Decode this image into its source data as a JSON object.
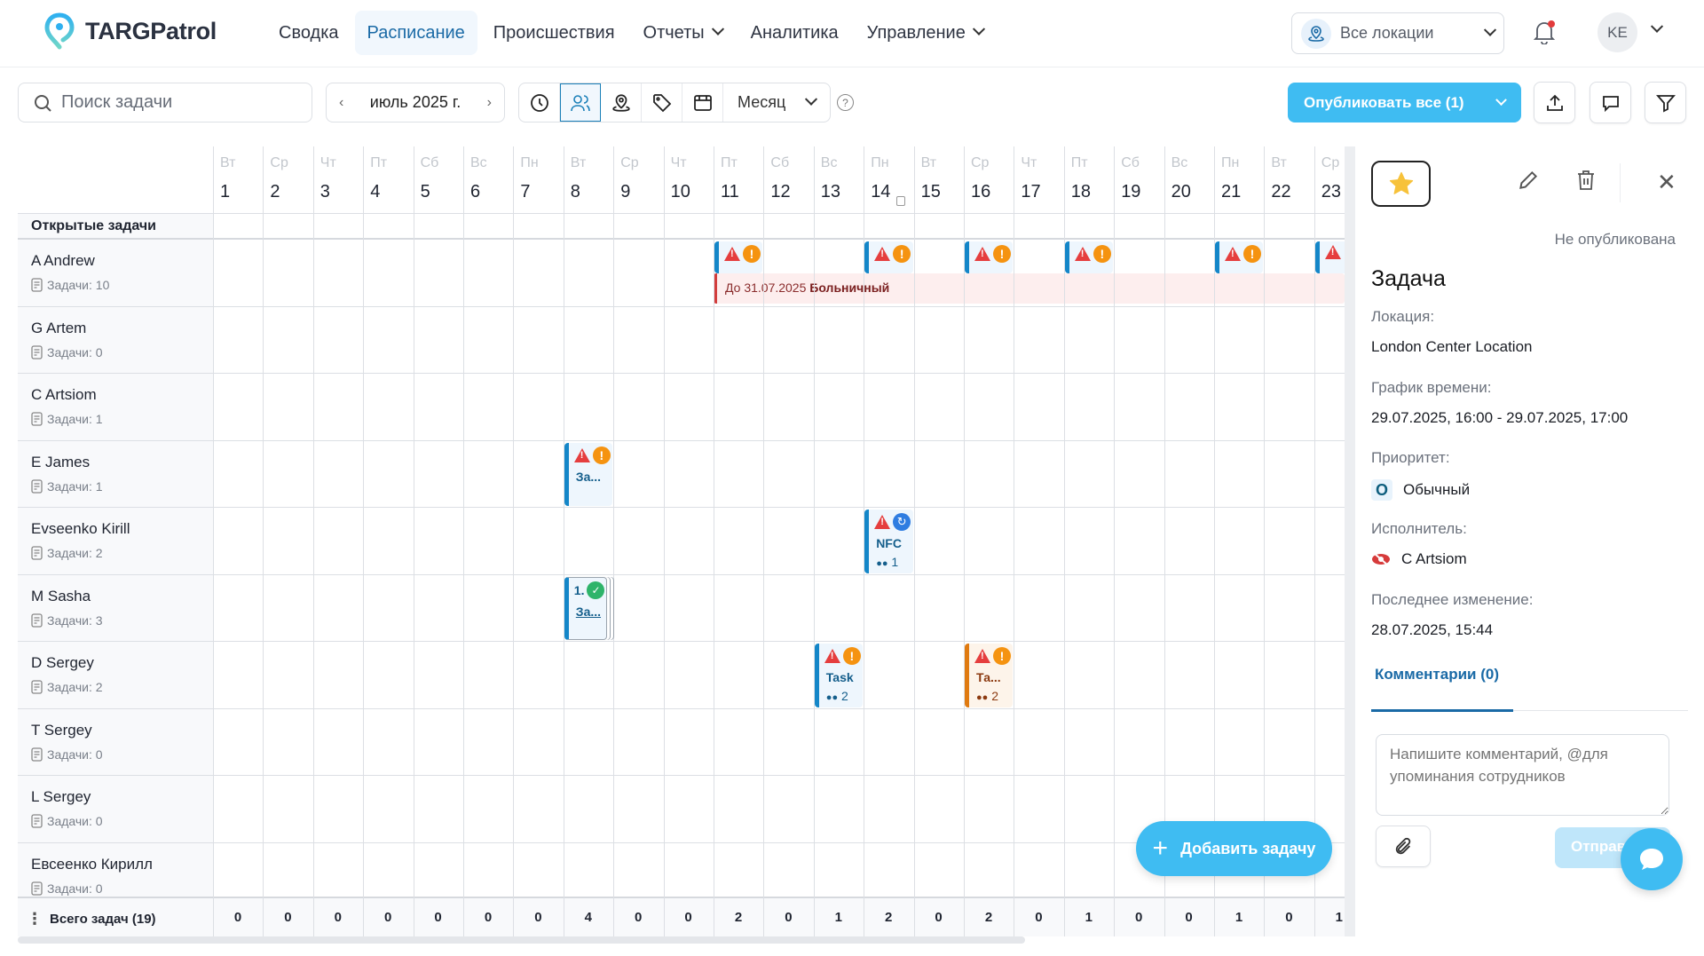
{
  "app": {
    "name": "TARGPatrol"
  },
  "nav": {
    "items": [
      {
        "label": "Сводка",
        "active": false,
        "dropdown": false
      },
      {
        "label": "Расписание",
        "active": true,
        "dropdown": false
      },
      {
        "label": "Происшествия",
        "active": false,
        "dropdown": false
      },
      {
        "label": "Отчеты",
        "active": false,
        "dropdown": true
      },
      {
        "label": "Аналитика",
        "active": false,
        "dropdown": false
      },
      {
        "label": "Управление",
        "active": false,
        "dropdown": true
      }
    ],
    "location_select": "Все локации",
    "user_initials": "KE",
    "notification_dot": true
  },
  "toolbar": {
    "search_placeholder": "Поиск задачи",
    "month": "июль 2025 г.",
    "view_buttons": [
      "clock-icon",
      "users-icon",
      "location-icon",
      "tag-icon",
      "calendar-icon"
    ],
    "active_view": "users-icon",
    "period": "Месяц",
    "help": "?",
    "publish_label": "Опубликовать все (1)",
    "icon_buttons": [
      "upload-icon",
      "comment-icon",
      "filter-icon"
    ]
  },
  "grid": {
    "open_tasks_label": "Открытые задачи",
    "days": [
      {
        "dow": "Вт",
        "num": "1"
      },
      {
        "dow": "Ср",
        "num": "2"
      },
      {
        "dow": "Чт",
        "num": "3"
      },
      {
        "dow": "Пт",
        "num": "4"
      },
      {
        "dow": "Сб",
        "num": "5"
      },
      {
        "dow": "Вс",
        "num": "6"
      },
      {
        "dow": "Пн",
        "num": "7"
      },
      {
        "dow": "Вт",
        "num": "8"
      },
      {
        "dow": "Ср",
        "num": "9"
      },
      {
        "dow": "Чт",
        "num": "10"
      },
      {
        "dow": "Пт",
        "num": "11"
      },
      {
        "dow": "Сб",
        "num": "12"
      },
      {
        "dow": "Вс",
        "num": "13"
      },
      {
        "dow": "Пн",
        "num": "14"
      },
      {
        "dow": "Вт",
        "num": "15"
      },
      {
        "dow": "Ср",
        "num": "16"
      },
      {
        "dow": "Чт",
        "num": "17"
      },
      {
        "dow": "Пт",
        "num": "18"
      },
      {
        "dow": "Сб",
        "num": "19"
      },
      {
        "dow": "Вс",
        "num": "20"
      },
      {
        "dow": "Пн",
        "num": "21"
      },
      {
        "dow": "Вт",
        "num": "22"
      },
      {
        "dow": "Ср",
        "num": "23"
      }
    ],
    "employees": [
      {
        "name": "A Andrew",
        "count": "Задачи: 10"
      },
      {
        "name": "G Artem",
        "count": "Задачи: 0"
      },
      {
        "name": "C Artsiom",
        "count": "Задачи: 1"
      },
      {
        "name": "E James",
        "count": "Задачи: 1"
      },
      {
        "name": "Evseenko Kirill",
        "count": "Задачи: 2"
      },
      {
        "name": "M Sasha",
        "count": "Задачи: 3"
      },
      {
        "name": "D Sergey",
        "count": "Задачи: 2"
      },
      {
        "name": "T Sergey",
        "count": "Задачи: 0"
      },
      {
        "name": "L Sergey",
        "count": "Задачи: 0"
      },
      {
        "name": "Евсеенко Кирилл",
        "count": "Задачи: 0"
      }
    ],
    "tasks": [
      {
        "row": 0,
        "day": 11,
        "color": "blue",
        "icons": [
          "warning",
          "exclamation"
        ],
        "title": "",
        "workers": ""
      },
      {
        "row": 0,
        "day": 14,
        "color": "blue",
        "icons": [
          "warning",
          "exclamation"
        ],
        "title": "",
        "workers": ""
      },
      {
        "row": 0,
        "day": 16,
        "color": "blue",
        "icons": [
          "warning",
          "exclamation"
        ],
        "title": "",
        "workers": ""
      },
      {
        "row": 0,
        "day": 18,
        "color": "blue",
        "icons": [
          "warning",
          "exclamation"
        ],
        "title": "",
        "workers": ""
      },
      {
        "row": 0,
        "day": 21,
        "color": "blue",
        "icons": [
          "warning",
          "exclamation"
        ],
        "title": "",
        "workers": ""
      },
      {
        "row": 0,
        "day": 23,
        "color": "blue",
        "icons": [
          "warning"
        ],
        "title": "",
        "workers": ""
      },
      {
        "row": 3,
        "day": 8,
        "color": "blue",
        "icons": [
          "warning",
          "exclamation"
        ],
        "title": "За...",
        "workers": ""
      },
      {
        "row": 4,
        "day": 14,
        "color": "blue",
        "icons": [
          "warning",
          "sync"
        ],
        "title": "NFC",
        "workers": "1"
      },
      {
        "row": 5,
        "day": 8,
        "color": "blue",
        "icons": [
          "check"
        ],
        "prefix": "1.",
        "title": "За...",
        "workers": "",
        "stacked": true
      },
      {
        "row": 6,
        "day": 13,
        "color": "blue",
        "icons": [
          "warning",
          "exclamation"
        ],
        "title": "Task",
        "workers": "2"
      },
      {
        "row": 6,
        "day": 16,
        "color": "orange",
        "icons": [
          "warning",
          "exclamation"
        ],
        "title": "Та...",
        "workers": "2"
      }
    ],
    "absence": {
      "row": 0,
      "from_day": 11,
      "text": "До 31.07.2025",
      "type": "Больничный"
    },
    "totals_label": "Всего задач (19)",
    "totals": [
      "0",
      "0",
      "0",
      "0",
      "0",
      "0",
      "0",
      "4",
      "0",
      "0",
      "2",
      "0",
      "1",
      "2",
      "0",
      "2",
      "0",
      "1",
      "0",
      "0",
      "1",
      "0",
      "1"
    ],
    "add_task_label": "Добавить задачу"
  },
  "panel": {
    "status": "Не опубликована",
    "title": "Задача",
    "location_label": "Локация:",
    "location": "London Center Location",
    "schedule_label": "График времени:",
    "schedule": "29.07.2025, 16:00 - 29.07.2025, 17:00",
    "priority_label": "Приоритет:",
    "priority_badge": "О",
    "priority": "Обычный",
    "assignee_label": "Исполнитель:",
    "assignee": "C Artsiom",
    "modified_label": "Последнее изменение:",
    "modified": "28.07.2025, 15:44",
    "comments_tab": "Комментарии (0)",
    "comment_placeholder": "Напишите комментарий, @для упоминания сотрудников",
    "send_label": "Отправить"
  },
  "colors": {
    "accent": "#3fbcf2",
    "primary": "#1a6aa6",
    "task_blue": "#1486c8",
    "task_orange": "#e07a10",
    "warning": "#e53e3e",
    "sick": "#d23c3c"
  }
}
